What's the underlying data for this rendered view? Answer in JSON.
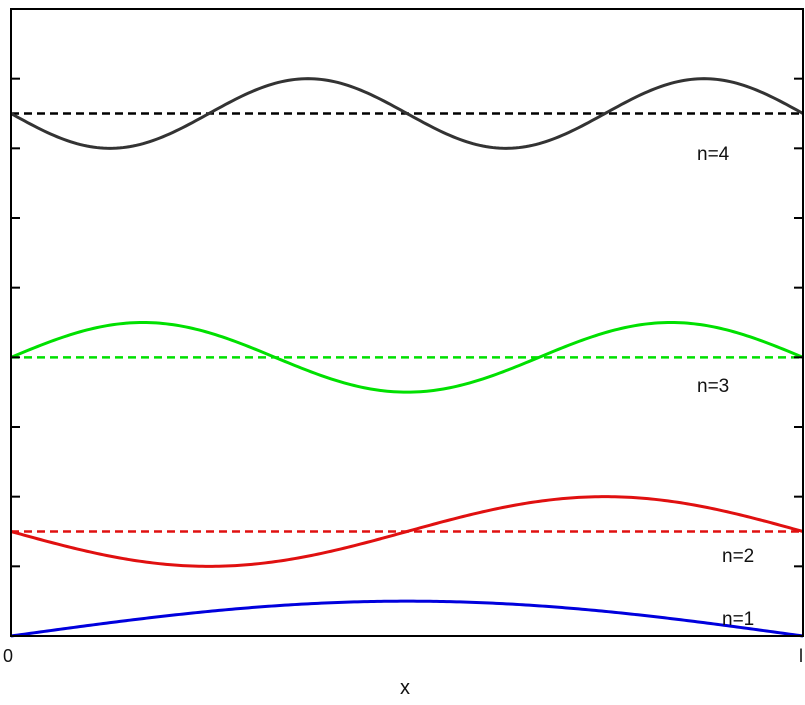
{
  "chart_data": {
    "type": "line",
    "title": "",
    "xlabel": "x",
    "ylabel": "",
    "x_tick_labels": [
      "0",
      "l"
    ],
    "grid": false,
    "series": [
      {
        "name": "n=1",
        "n": 1,
        "color": "#0000dd",
        "baseline": 0.0,
        "amplitude": 0.5,
        "sign": 1
      },
      {
        "name": "n=2",
        "n": 2,
        "color": "#e01010",
        "baseline": 1.5,
        "amplitude": 0.5,
        "sign": -1
      },
      {
        "name": "n=3",
        "n": 3,
        "color": "#00e000",
        "baseline": 4.0,
        "amplitude": 0.5,
        "sign": 1
      },
      {
        "name": "n=4",
        "n": 4,
        "color": "#333333",
        "baseline": 7.5,
        "amplitude": 0.5,
        "sign": -1
      }
    ],
    "dashed_line_color": "#000000"
  }
}
